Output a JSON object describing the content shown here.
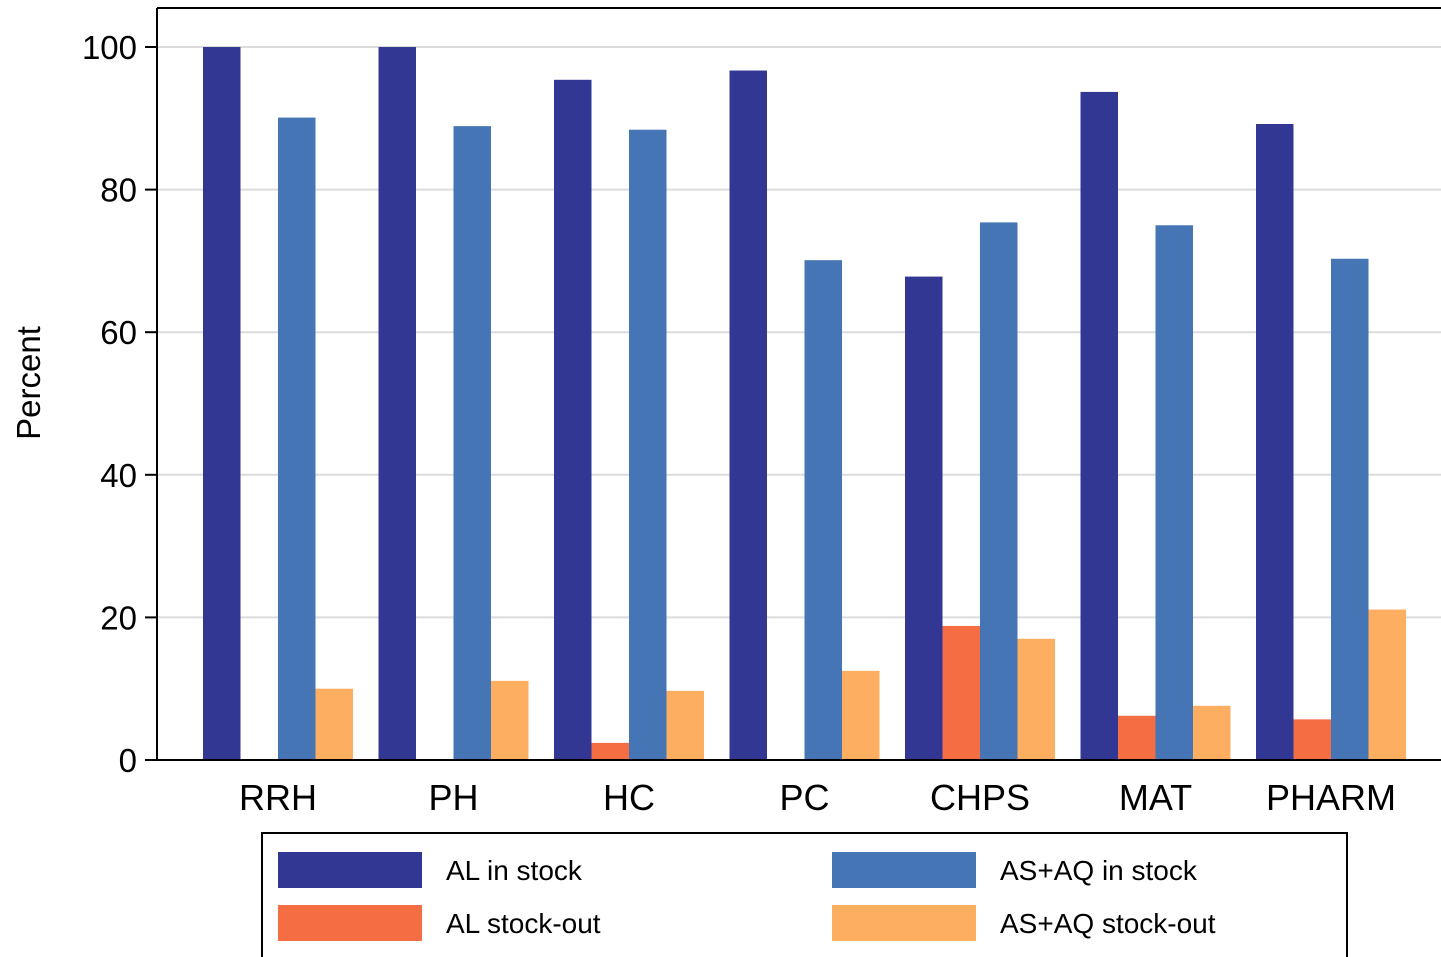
{
  "chart_data": {
    "type": "bar",
    "title": "",
    "xlabel": "",
    "ylabel": "Percent",
    "ylim": [
      0,
      105
    ],
    "yticks": [
      "0",
      "20",
      "40",
      "60",
      "80",
      "100"
    ],
    "grid": true,
    "legend_position": "bottom",
    "categories": [
      "RRH",
      "PH",
      "HC",
      "PC",
      "CHPS",
      "MAT",
      "PHARM"
    ],
    "series": [
      {
        "name": "AL in stock",
        "color": "#333794",
        "values": [
          100,
          100,
          95.4,
          96.7,
          67.8,
          93.7,
          89.2
        ]
      },
      {
        "name": "AL stock-out",
        "color": "#f46d43",
        "values": [
          0,
          0,
          2.4,
          0,
          18.8,
          6.2,
          5.7
        ]
      },
      {
        "name": "AS+AQ in stock",
        "color": "#4575b4",
        "values": [
          90.1,
          88.9,
          88.4,
          70.1,
          75.4,
          75.0,
          70.3
        ]
      },
      {
        "name": "AS+AQ stock-out",
        "color": "#fdae61",
        "values": [
          10.0,
          11.1,
          9.7,
          12.5,
          17.0,
          7.6,
          21.1
        ]
      }
    ]
  }
}
